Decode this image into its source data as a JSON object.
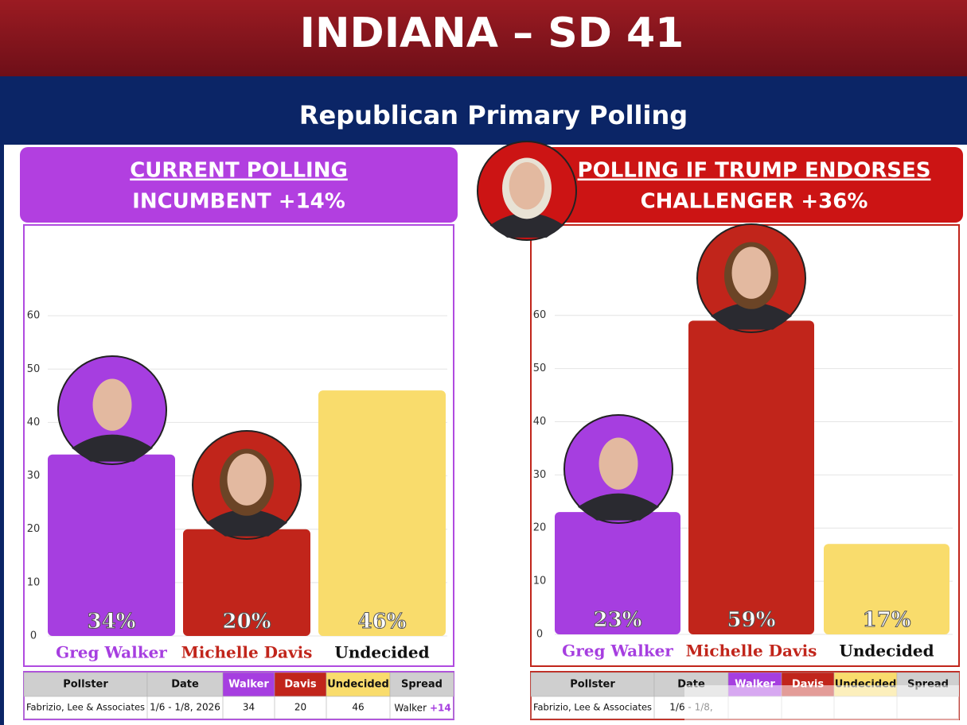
{
  "header": {
    "title": "INDIANA – SD 41",
    "subtitle": "Republican Primary Polling"
  },
  "chart_data": [
    {
      "type": "bar",
      "title": "CURRENT POLLING",
      "subtitle": "INCUMBENT +14%",
      "categories": [
        "Greg Walker",
        "Michelle Davis",
        "Undecided"
      ],
      "values": [
        34,
        20,
        46
      ],
      "value_labels": [
        "34%",
        "20%",
        "46%"
      ],
      "colors": [
        "#a63ee0",
        "#c1251b",
        "#f9dc6c"
      ],
      "ylim": [
        0,
        77
      ],
      "yticks": [
        0,
        10,
        20,
        30,
        40,
        50,
        60
      ],
      "grid": true
    },
    {
      "type": "bar",
      "title": "POLLING IF TRUMP ENDORSES",
      "subtitle": "CHALLENGER +36%",
      "categories": [
        "Greg Walker",
        "Michelle Davis",
        "Undecided"
      ],
      "values": [
        23,
        59,
        17
      ],
      "value_labels": [
        "23%",
        "59%",
        "17%"
      ],
      "colors": [
        "#a63ee0",
        "#c1251b",
        "#f9dc6c"
      ],
      "ylim": [
        0,
        77
      ],
      "yticks": [
        0,
        10,
        20,
        30,
        40,
        50,
        60
      ],
      "grid": true
    }
  ],
  "tables": [
    {
      "headers": [
        "Pollster",
        "Date",
        "Walker",
        "Davis",
        "Undecided",
        "Spread"
      ],
      "row": [
        "Fabrizio, Lee & Associates",
        "1/6 - 1/8, 2026",
        34,
        20,
        46
      ],
      "spread_name": "Walker",
      "spread_margin": "+14"
    },
    {
      "headers": [
        "Pollster",
        "Date",
        "Walker",
        "Davis",
        "Undecided",
        "Spread"
      ],
      "row": [
        "Fabrizio, Lee & Associates",
        "1/6 - 1/8,"
      ]
    }
  ]
}
